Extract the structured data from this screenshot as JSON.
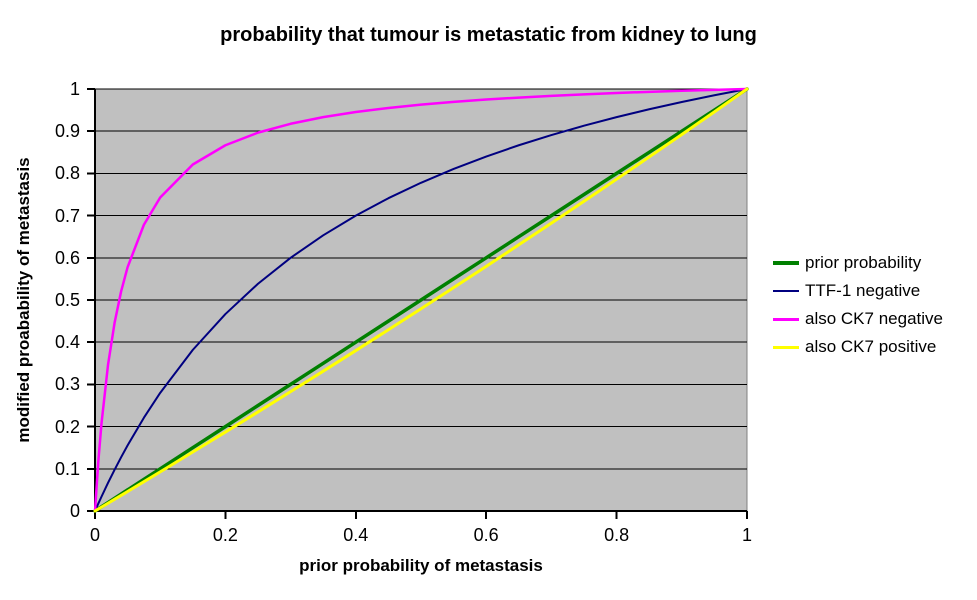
{
  "title": "probability that tumour is metastatic from kidney to lung",
  "chart_data": {
    "type": "line",
    "title": "probability that tumour is metastatic from kidney to lung",
    "xlabel": "prior probability of metastasis",
    "ylabel": "modified proabability of metastasis",
    "xlim": [
      0,
      1
    ],
    "ylim": [
      0,
      1
    ],
    "x_ticks": [
      0,
      0.2,
      0.4,
      0.6,
      0.8,
      1
    ],
    "y_ticks": [
      0,
      0.1,
      0.2,
      0.3,
      0.4,
      0.5,
      0.6,
      0.7,
      0.8,
      0.9,
      1
    ],
    "gridlines": "horizontal-major-only",
    "plot_background": "#C0C0C0",
    "plot_border": "#808080",
    "gridline_color": "#000000",
    "axis_color": "#000000",
    "legend_position": "right",
    "x": [
      0,
      0.005,
      0.01,
      0.02,
      0.03,
      0.04,
      0.05,
      0.075,
      0.1,
      0.15,
      0.2,
      0.25,
      0.3,
      0.35,
      0.4,
      0.45,
      0.5,
      0.55,
      0.6,
      0.65,
      0.7,
      0.75,
      0.8,
      0.85,
      0.9,
      0.95,
      1
    ],
    "series": [
      {
        "name": "prior probability",
        "color": "#008000",
        "stroke_width": 3.5,
        "values": [
          0,
          0.005,
          0.01,
          0.02,
          0.03,
          0.04,
          0.05,
          0.075,
          0.1,
          0.15,
          0.2,
          0.25,
          0.3,
          0.35,
          0.4,
          0.45,
          0.5,
          0.55,
          0.6,
          0.65,
          0.7,
          0.75,
          0.8,
          0.85,
          0.9,
          0.95,
          1
        ]
      },
      {
        "name": "TTF-1 negative",
        "color": "#000080",
        "stroke_width": 2,
        "values": [
          0,
          0.0173,
          0.0341,
          0.0667,
          0.0977,
          0.1273,
          0.1556,
          0.2211,
          0.28,
          0.3818,
          0.4667,
          0.5385,
          0.6,
          0.6533,
          0.7,
          0.7412,
          0.7778,
          0.8105,
          0.84,
          0.8667,
          0.8909,
          0.913,
          0.9333,
          0.952,
          0.9692,
          0.9852,
          1
        ]
      },
      {
        "name": "also CK7 negative",
        "color": "#FF00FF",
        "stroke_width": 2.5,
        "values": [
          0,
          0.1156,
          0.208,
          0.3467,
          0.4457,
          0.52,
          0.5778,
          0.6783,
          0.7429,
          0.8211,
          0.8667,
          0.8966,
          0.9176,
          0.9333,
          0.9455,
          0.9551,
          0.963,
          0.9695,
          0.975,
          0.9797,
          0.9838,
          0.9873,
          0.9905,
          0.9933,
          0.9957,
          0.998,
          1
        ]
      },
      {
        "name": "also CK7 positive",
        "color": "#FFFF00",
        "stroke_width": 3,
        "values": [
          0,
          0.0046,
          0.0092,
          0.0184,
          0.0277,
          0.0369,
          0.0462,
          0.0694,
          0.0927,
          0.1398,
          0.187,
          0.2347,
          0.2828,
          0.3313,
          0.3802,
          0.4295,
          0.4792,
          0.5293,
          0.5798,
          0.6308,
          0.6822,
          0.734,
          0.7863,
          0.839,
          0.8922,
          0.9458,
          1
        ]
      }
    ]
  }
}
